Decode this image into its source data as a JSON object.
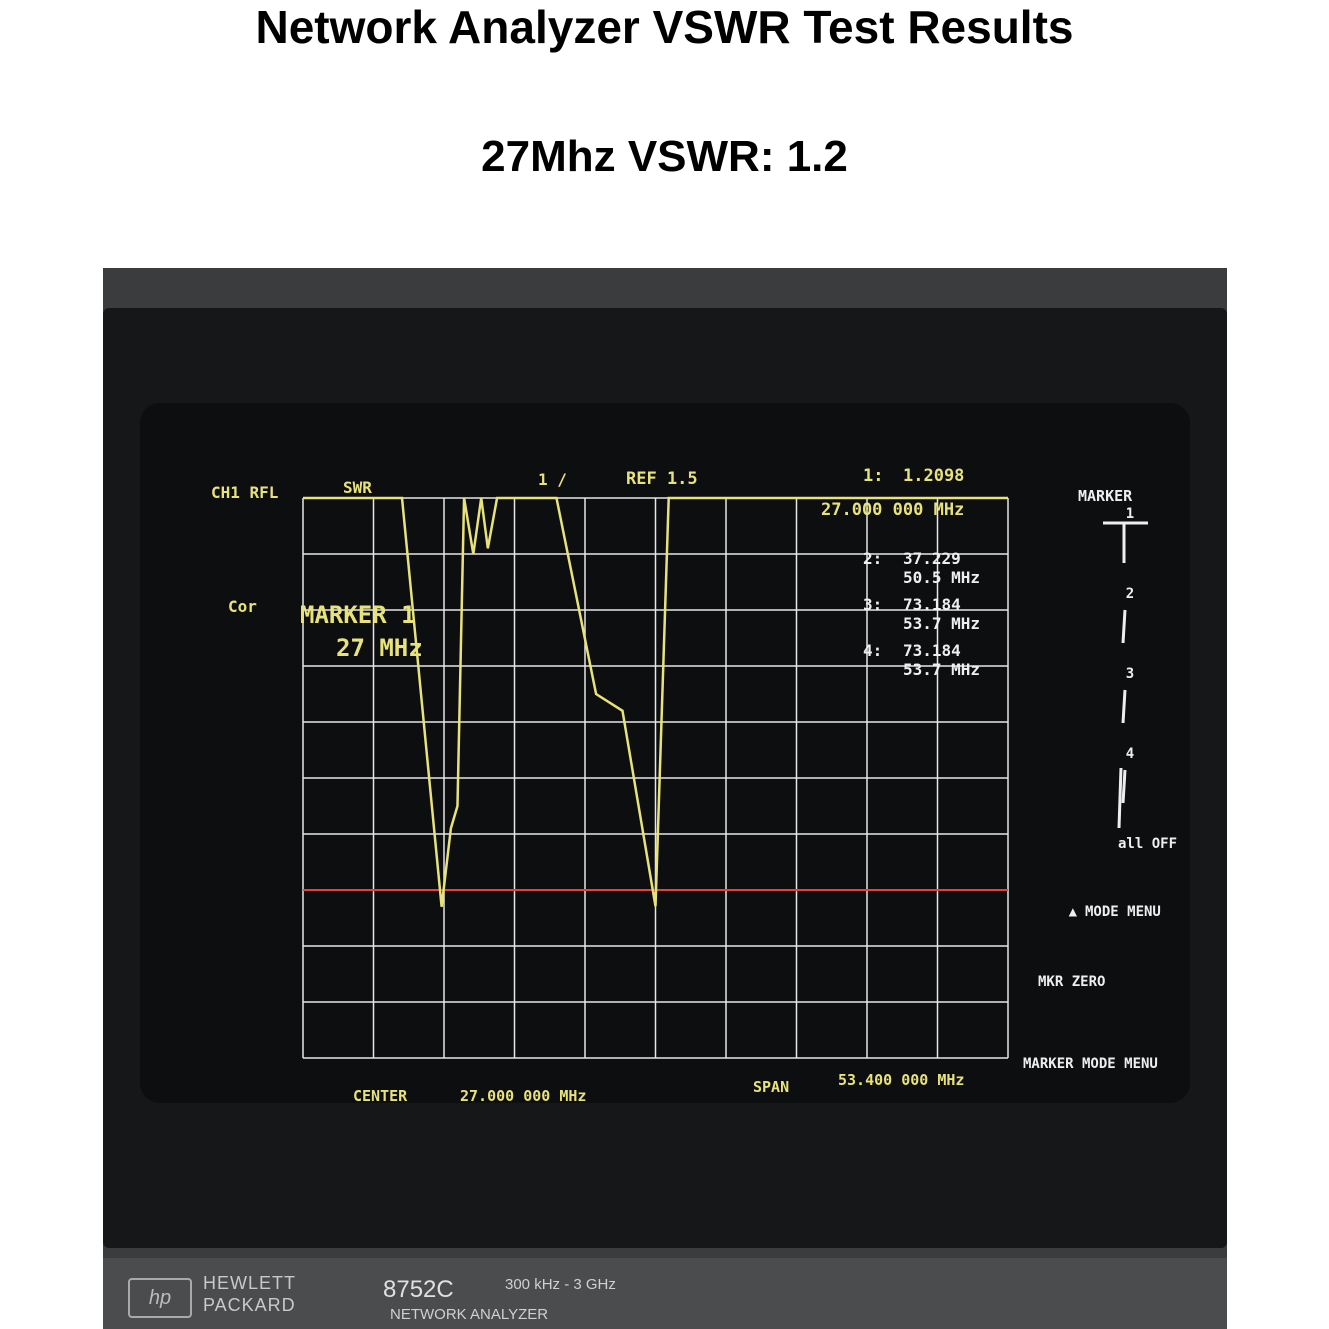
{
  "heading": {
    "title": "Network Analyzer VSWR Test Results",
    "subtitle": "27Mhz VSWR: 1.2"
  },
  "instrument": {
    "brand": "HEWLETT PACKARD",
    "logo": "hp",
    "model": "8752C",
    "range": "300 kHz - 3 GHz",
    "kind": "NETWORK ANALYZER"
  },
  "display": {
    "channel": "CH1 RFL",
    "format": "SWR",
    "scale": "1 /",
    "ref": "REF 1.5",
    "cor": "Cor",
    "marker_label": "MARKER 1",
    "marker_freq": "27 MHz",
    "active_marker": {
      "id": "1:",
      "value": "1.2098",
      "freq": "27.000 000 MHz"
    },
    "markers": [
      {
        "id": "2:",
        "value": "37.229",
        "freq": "50.5 MHz"
      },
      {
        "id": "3:",
        "value": "73.184",
        "freq": "53.7 MHz"
      },
      {
        "id": "4:",
        "value": "73.184",
        "freq": "53.7 MHz"
      }
    ],
    "center_label": "CENTER",
    "center": "27.000 000 MHz",
    "span_label": "SPAN",
    "span": "53.400 000 MHz",
    "softkeys": {
      "title": "MARKER",
      "items": [
        "1",
        "2",
        "3",
        "4",
        "all OFF"
      ],
      "mode_menu": "MODE MENU",
      "mkr_zero": "MKR ZERO",
      "marker_mode_menu": "MARKER MODE MENU"
    },
    "colors": {
      "trace": "#e8e27a",
      "reference_line": "#e8403a",
      "grid": "#e6e6e6",
      "text": "#e8e27a",
      "softkey_text": "#eeeeee"
    }
  },
  "chart_data": {
    "type": "line",
    "title": "",
    "xlabel": "",
    "ylabel": "SWR",
    "xlim": [
      0.3,
      53.7
    ],
    "ylim": [
      -1.5,
      8.5
    ],
    "grid": true,
    "reference_value": 1.5,
    "x_unit": "MHz",
    "series": [
      {
        "x": [
          0.3,
          7.8,
          10.8,
          11.5,
          12.0,
          12.5,
          13.2,
          13.8,
          14.3,
          15.0,
          19.5,
          22.5,
          24.5,
          27.0,
          28.0,
          53.7
        ],
        "y": [
          8.5,
          8.5,
          1.2,
          2.6,
          3.0,
          8.5,
          7.5,
          8.5,
          7.6,
          8.5,
          8.5,
          5.0,
          4.7,
          1.21,
          8.5,
          8.5
        ]
      }
    ]
  }
}
